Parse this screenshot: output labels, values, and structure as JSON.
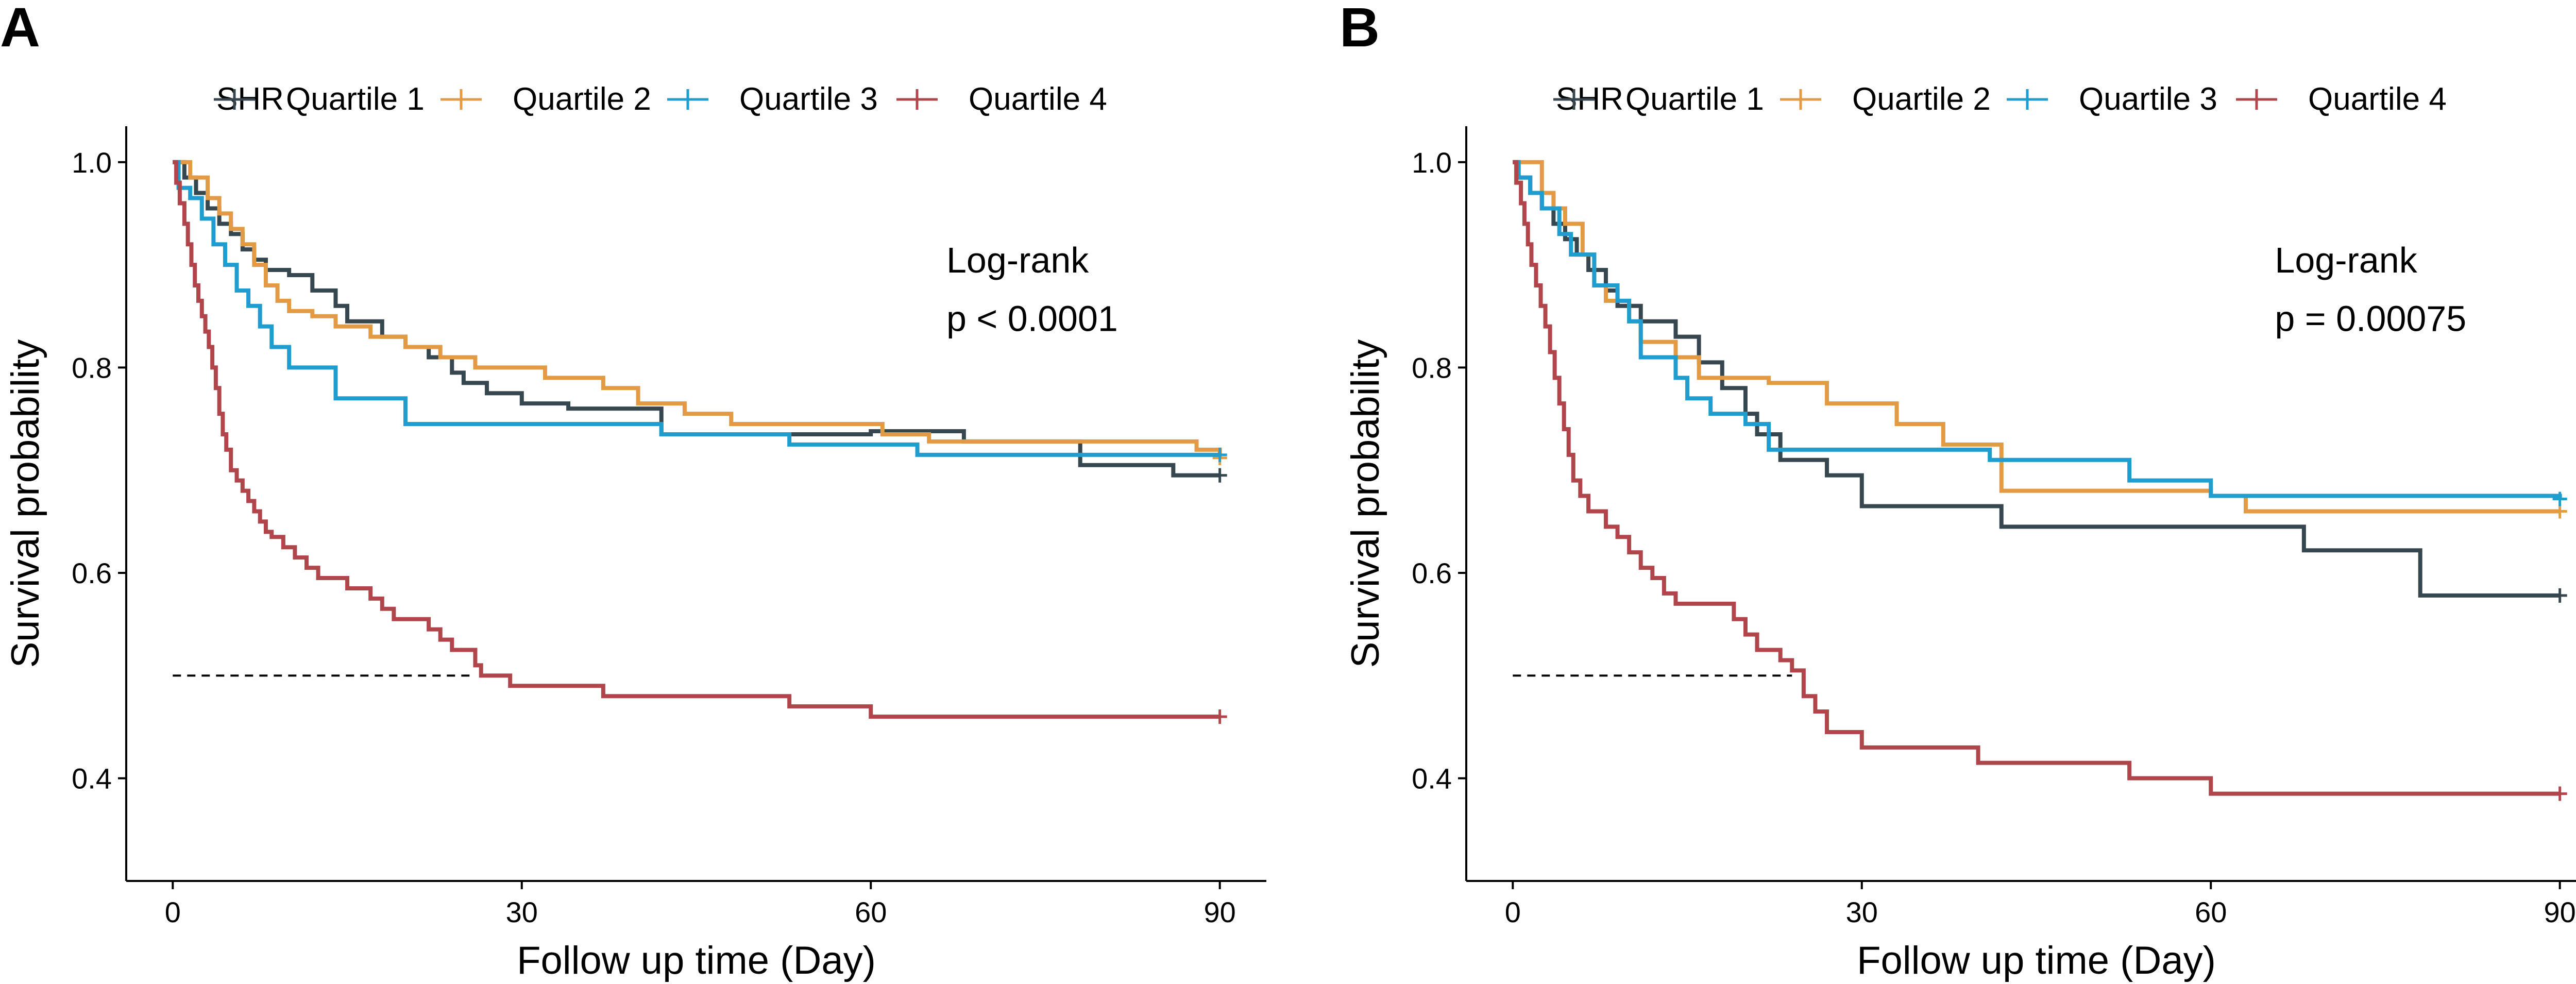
{
  "chart_data": [
    {
      "type": "line",
      "panel_label": "A",
      "legend_title": "SHR",
      "legend_position": "top",
      "xlabel": "Follow up time (Day)",
      "ylabel": "Survival probability",
      "xlim": [
        -4,
        94
      ],
      "ylim": [
        0.3,
        1.035
      ],
      "x_ticks": [
        0,
        30,
        60,
        90
      ],
      "y_ticks": [
        0.4,
        0.6,
        0.8,
        1.0
      ],
      "x_tick_labels": [
        "0",
        "30",
        "60",
        "90"
      ],
      "y_tick_labels": [
        "0.4",
        "0.6",
        "0.8",
        "1.0"
      ],
      "grid": false,
      "annotation": {
        "line1": "Log-rank",
        "line2": "p < 0.0001",
        "x": 66.5,
        "y_top": 0.905,
        "y_bottom": 0.848
      },
      "median_reference": {
        "y": 0.5,
        "x_start": 0,
        "x_end": 26
      },
      "series": [
        {
          "name": "Quartile 1",
          "color": "#37474F",
          "steps": [
            [
              0,
              1.0
            ],
            [
              1,
              0.985
            ],
            [
              2,
              0.97
            ],
            [
              3,
              0.955
            ],
            [
              4,
              0.94
            ],
            [
              5,
              0.93
            ],
            [
              6,
              0.915
            ],
            [
              7,
              0.905
            ],
            [
              8,
              0.895
            ],
            [
              10,
              0.89
            ],
            [
              12,
              0.875
            ],
            [
              14,
              0.86
            ],
            [
              15,
              0.845
            ],
            [
              18,
              0.83
            ],
            [
              20,
              0.82
            ],
            [
              22,
              0.81
            ],
            [
              24,
              0.795
            ],
            [
              25,
              0.785
            ],
            [
              27,
              0.775
            ],
            [
              30,
              0.765
            ],
            [
              34,
              0.76
            ],
            [
              42,
              0.735
            ],
            [
              60,
              0.738
            ],
            [
              68,
              0.728
            ],
            [
              78,
              0.705
            ],
            [
              86,
              0.695
            ],
            [
              90,
              0.695
            ]
          ],
          "censor": [
            [
              90,
              0.695
            ]
          ]
        },
        {
          "name": "Quartile 2",
          "color": "#E39A45",
          "steps": [
            [
              0,
              1.0
            ],
            [
              1.5,
              0.985
            ],
            [
              3,
              0.965
            ],
            [
              4,
              0.95
            ],
            [
              5,
              0.935
            ],
            [
              6,
              0.92
            ],
            [
              7,
              0.9
            ],
            [
              8,
              0.88
            ],
            [
              9,
              0.865
            ],
            [
              10,
              0.855
            ],
            [
              12,
              0.85
            ],
            [
              14,
              0.84
            ],
            [
              17,
              0.83
            ],
            [
              20,
              0.82
            ],
            [
              23,
              0.81
            ],
            [
              26,
              0.8
            ],
            [
              32,
              0.79
            ],
            [
              37,
              0.78
            ],
            [
              40,
              0.765
            ],
            [
              44,
              0.755
            ],
            [
              48,
              0.745
            ],
            [
              61,
              0.735
            ],
            [
              65,
              0.728
            ],
            [
              88,
              0.72
            ],
            [
              90,
              0.712
            ]
          ],
          "censor": [
            [
              90,
              0.712
            ]
          ]
        },
        {
          "name": "Quartile 3",
          "color": "#1F9DCE",
          "steps": [
            [
              0,
              1.0
            ],
            [
              0.5,
              0.975
            ],
            [
              1.5,
              0.965
            ],
            [
              2.5,
              0.945
            ],
            [
              3.5,
              0.92
            ],
            [
              4.5,
              0.9
            ],
            [
              5.5,
              0.875
            ],
            [
              6.5,
              0.86
            ],
            [
              7.5,
              0.84
            ],
            [
              8.5,
              0.82
            ],
            [
              10,
              0.8
            ],
            [
              14,
              0.77
            ],
            [
              20,
              0.745
            ],
            [
              42,
              0.735
            ],
            [
              53,
              0.725
            ],
            [
              64,
              0.715
            ],
            [
              90,
              0.715
            ]
          ],
          "censor": [
            [
              90,
              0.715
            ]
          ]
        },
        {
          "name": "Quartile 4",
          "color": "#B0464B",
          "steps": [
            [
              0,
              1.0
            ],
            [
              0.3,
              0.98
            ],
            [
              0.6,
              0.96
            ],
            [
              1.0,
              0.94
            ],
            [
              1.3,
              0.92
            ],
            [
              1.6,
              0.9
            ],
            [
              1.9,
              0.88
            ],
            [
              2.2,
              0.865
            ],
            [
              2.5,
              0.85
            ],
            [
              2.8,
              0.835
            ],
            [
              3.1,
              0.82
            ],
            [
              3.4,
              0.8
            ],
            [
              3.7,
              0.78
            ],
            [
              4.0,
              0.755
            ],
            [
              4.3,
              0.735
            ],
            [
              4.6,
              0.72
            ],
            [
              5.0,
              0.7
            ],
            [
              5.5,
              0.69
            ],
            [
              6.0,
              0.68
            ],
            [
              6.5,
              0.67
            ],
            [
              7.0,
              0.66
            ],
            [
              7.5,
              0.65
            ],
            [
              8.0,
              0.64
            ],
            [
              8.5,
              0.635
            ],
            [
              9.5,
              0.625
            ],
            [
              10.5,
              0.615
            ],
            [
              11.5,
              0.605
            ],
            [
              12.5,
              0.595
            ],
            [
              15,
              0.585
            ],
            [
              17,
              0.575
            ],
            [
              18,
              0.565
            ],
            [
              19,
              0.555
            ],
            [
              22,
              0.545
            ],
            [
              23,
              0.535
            ],
            [
              24,
              0.525
            ],
            [
              26,
              0.51
            ],
            [
              26.5,
              0.5
            ],
            [
              29,
              0.49
            ],
            [
              37,
              0.48
            ],
            [
              53,
              0.47
            ],
            [
              60,
              0.46
            ],
            [
              90,
              0.46
            ]
          ],
          "censor": [
            [
              90,
              0.46
            ]
          ]
        }
      ]
    },
    {
      "type": "line",
      "panel_label": "B",
      "legend_title": "SHR",
      "legend_position": "top",
      "xlabel": "Follow up time (Day)",
      "ylabel": "Survival probability",
      "xlim": [
        -4,
        94
      ],
      "ylim": [
        0.3,
        1.035
      ],
      "x_ticks": [
        0,
        30,
        60,
        90
      ],
      "y_ticks": [
        0.4,
        0.6,
        0.8,
        1.0
      ],
      "x_tick_labels": [
        "0",
        "30",
        "60",
        "90"
      ],
      "y_tick_labels": [
        "0.4",
        "0.6",
        "0.8",
        "1.0"
      ],
      "grid": false,
      "annotation": {
        "line1": "Log-rank",
        "line2": "p = 0.00075",
        "x": 65.5,
        "y_top": 0.905,
        "y_bottom": 0.848
      },
      "median_reference": {
        "y": 0.5,
        "x_start": 0,
        "x_end": 24
      },
      "series": [
        {
          "name": "Quartile 1",
          "color": "#37474F",
          "steps": [
            [
              0,
              1.0
            ],
            [
              0.5,
              0.985
            ],
            [
              1.5,
              0.97
            ],
            [
              2.5,
              0.955
            ],
            [
              3.5,
              0.94
            ],
            [
              4.5,
              0.925
            ],
            [
              5.5,
              0.91
            ],
            [
              6.5,
              0.895
            ],
            [
              8,
              0.875
            ],
            [
              9,
              0.86
            ],
            [
              11,
              0.845
            ],
            [
              14,
              0.83
            ],
            [
              16,
              0.805
            ],
            [
              18,
              0.78
            ],
            [
              20,
              0.755
            ],
            [
              21,
              0.735
            ],
            [
              23,
              0.71
            ],
            [
              27,
              0.695
            ],
            [
              30,
              0.665
            ],
            [
              38,
              0.665
            ],
            [
              42,
              0.645
            ],
            [
              68,
              0.622
            ],
            [
              78,
              0.578
            ],
            [
              90,
              0.578
            ]
          ],
          "censor": [
            [
              90,
              0.578
            ]
          ]
        },
        {
          "name": "Quartile 2",
          "color": "#E39A45",
          "steps": [
            [
              0,
              1.0
            ],
            [
              2.5,
              0.97
            ],
            [
              3.5,
              0.955
            ],
            [
              4.5,
              0.94
            ],
            [
              6,
              0.91
            ],
            [
              7,
              0.88
            ],
            [
              8,
              0.865
            ],
            [
              10,
              0.845
            ],
            [
              11,
              0.825
            ],
            [
              14,
              0.81
            ],
            [
              16,
              0.79
            ],
            [
              22,
              0.785
            ],
            [
              27,
              0.765
            ],
            [
              33,
              0.745
            ],
            [
              37,
              0.725
            ],
            [
              42,
              0.68
            ],
            [
              60,
              0.675
            ],
            [
              63,
              0.66
            ],
            [
              90,
              0.66
            ]
          ],
          "censor": [
            [
              90,
              0.66
            ]
          ]
        },
        {
          "name": "Quartile 3",
          "color": "#1F9DCE",
          "steps": [
            [
              0,
              1.0
            ],
            [
              0.5,
              0.985
            ],
            [
              1.5,
              0.97
            ],
            [
              2.5,
              0.955
            ],
            [
              4,
              0.93
            ],
            [
              5,
              0.91
            ],
            [
              7,
              0.88
            ],
            [
              9,
              0.865
            ],
            [
              10,
              0.845
            ],
            [
              11,
              0.81
            ],
            [
              14,
              0.79
            ],
            [
              15,
              0.77
            ],
            [
              17,
              0.755
            ],
            [
              20,
              0.745
            ],
            [
              22,
              0.72
            ],
            [
              41,
              0.71
            ],
            [
              53,
              0.69
            ],
            [
              60,
              0.675
            ],
            [
              90,
              0.672
            ]
          ],
          "censor": [
            [
              90,
              0.672
            ]
          ]
        },
        {
          "name": "Quartile 4",
          "color": "#B0464B",
          "steps": [
            [
              0,
              1.0
            ],
            [
              0.3,
              0.98
            ],
            [
              0.7,
              0.96
            ],
            [
              1.0,
              0.94
            ],
            [
              1.3,
              0.92
            ],
            [
              1.6,
              0.9
            ],
            [
              2.0,
              0.88
            ],
            [
              2.4,
              0.86
            ],
            [
              2.8,
              0.84
            ],
            [
              3.2,
              0.815
            ],
            [
              3.6,
              0.79
            ],
            [
              4.0,
              0.765
            ],
            [
              4.4,
              0.74
            ],
            [
              4.8,
              0.715
            ],
            [
              5.2,
              0.69
            ],
            [
              5.8,
              0.675
            ],
            [
              6.5,
              0.66
            ],
            [
              8,
              0.645
            ],
            [
              9,
              0.635
            ],
            [
              10,
              0.62
            ],
            [
              11,
              0.605
            ],
            [
              12,
              0.595
            ],
            [
              13,
              0.58
            ],
            [
              14,
              0.57
            ],
            [
              19,
              0.555
            ],
            [
              20,
              0.54
            ],
            [
              21,
              0.525
            ],
            [
              23,
              0.515
            ],
            [
              24,
              0.505
            ],
            [
              25,
              0.48
            ],
            [
              26,
              0.465
            ],
            [
              27,
              0.445
            ],
            [
              30,
              0.43
            ],
            [
              40,
              0.415
            ],
            [
              53,
              0.4
            ],
            [
              60,
              0.385
            ],
            [
              90,
              0.385
            ]
          ],
          "censor": [
            [
              90,
              0.385
            ]
          ]
        }
      ]
    }
  ]
}
